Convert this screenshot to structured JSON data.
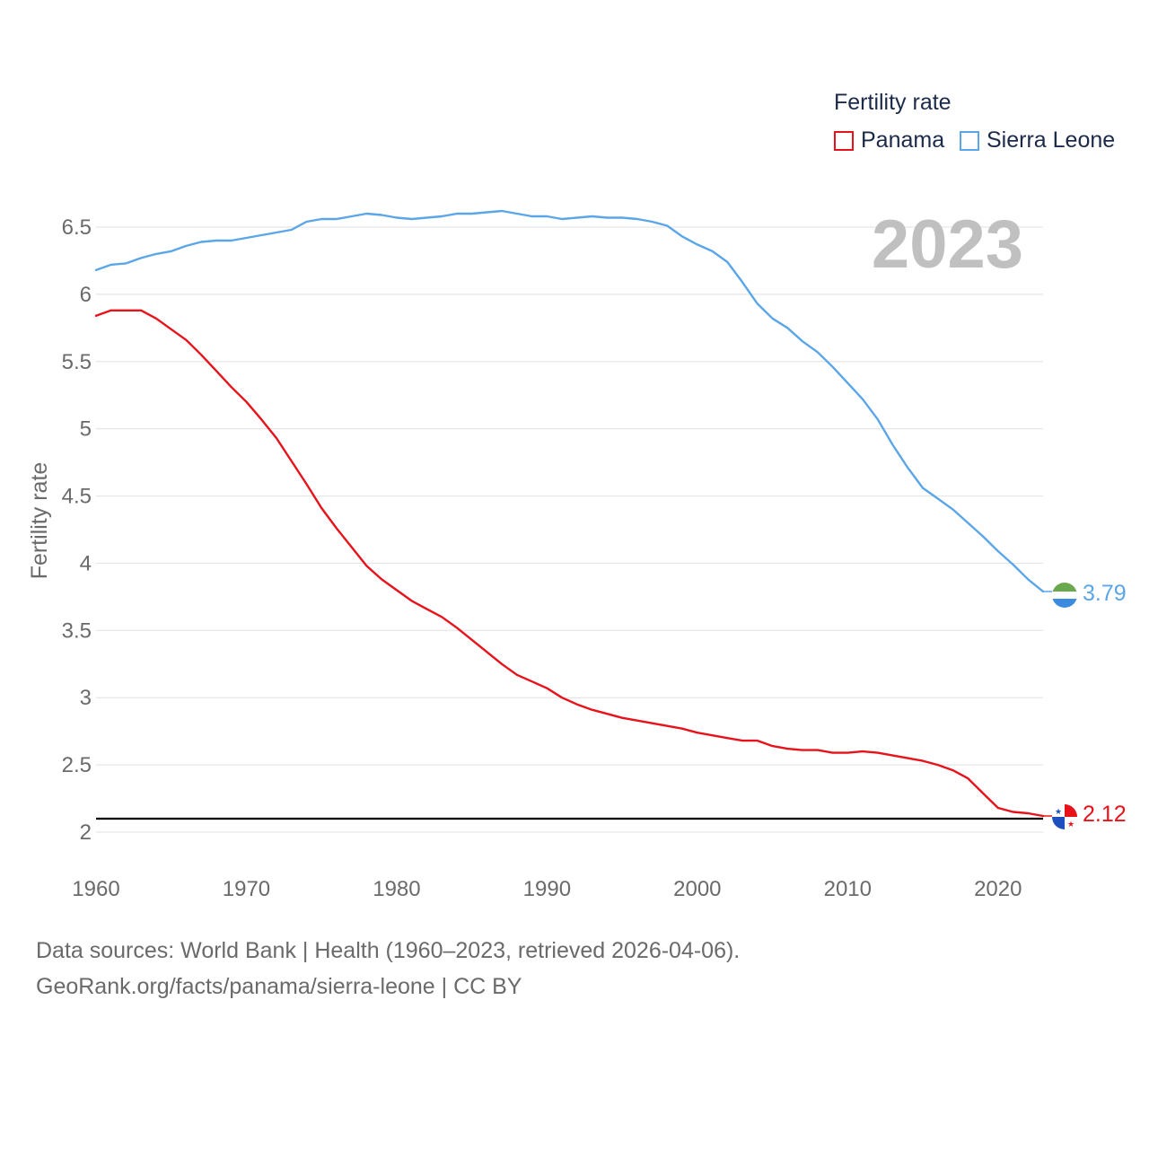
{
  "legend": {
    "title": "Fertility rate",
    "items": [
      {
        "label": "Panama",
        "color": "#e8121b"
      },
      {
        "label": "Sierra Leone",
        "color": "#5ba6e8"
      }
    ]
  },
  "footer": {
    "line1": "Data sources: World Bank | Health (1960–2023, retrieved 2026-04-06).",
    "line2": "GeoRank.org/facts/panama/sierra-leone | CC BY"
  },
  "chart_data": {
    "type": "line",
    "title": "Fertility rate",
    "year_label": "2023",
    "ylabel": "Fertility rate",
    "xlabel": "",
    "xlim": [
      1960,
      2023
    ],
    "ylim": [
      2,
      6.62
    ],
    "x_ticks": [
      "1960",
      "1970",
      "1980",
      "1990",
      "2000",
      "2010",
      "2020"
    ],
    "y_ticks": [
      "2",
      "2.5",
      "3",
      "3.5",
      "4",
      "4.5",
      "5",
      "5.5",
      "6",
      "6.5"
    ],
    "reference_line": {
      "value": 2.1,
      "color": "#000000"
    },
    "x": [
      1960,
      1961,
      1962,
      1963,
      1964,
      1965,
      1966,
      1967,
      1968,
      1969,
      1970,
      1971,
      1972,
      1973,
      1974,
      1975,
      1976,
      1977,
      1978,
      1979,
      1980,
      1981,
      1982,
      1983,
      1984,
      1985,
      1986,
      1987,
      1988,
      1989,
      1990,
      1991,
      1992,
      1993,
      1994,
      1995,
      1996,
      1997,
      1998,
      1999,
      2000,
      2001,
      2002,
      2003,
      2004,
      2005,
      2006,
      2007,
      2008,
      2009,
      2010,
      2011,
      2012,
      2013,
      2014,
      2015,
      2016,
      2017,
      2018,
      2019,
      2020,
      2021,
      2022,
      2023
    ],
    "series": [
      {
        "name": "Panama",
        "color": "#e8121b",
        "end_label": "2.12",
        "values": [
          5.84,
          5.88,
          5.88,
          5.88,
          5.82,
          5.74,
          5.66,
          5.55,
          5.43,
          5.31,
          5.2,
          5.07,
          4.93,
          4.76,
          4.59,
          4.41,
          4.26,
          4.12,
          3.98,
          3.88,
          3.8,
          3.72,
          3.66,
          3.6,
          3.52,
          3.43,
          3.34,
          3.25,
          3.17,
          3.12,
          3.07,
          3.0,
          2.95,
          2.91,
          2.88,
          2.85,
          2.83,
          2.81,
          2.79,
          2.77,
          2.74,
          2.72,
          2.7,
          2.68,
          2.68,
          2.64,
          2.62,
          2.61,
          2.61,
          2.59,
          2.59,
          2.6,
          2.59,
          2.57,
          2.55,
          2.53,
          2.5,
          2.46,
          2.4,
          2.29,
          2.18,
          2.15,
          2.14,
          2.12
        ]
      },
      {
        "name": "Sierra Leone",
        "color": "#5ba6e8",
        "end_label": "3.79",
        "values": [
          6.18,
          6.22,
          6.23,
          6.27,
          6.3,
          6.32,
          6.36,
          6.39,
          6.4,
          6.4,
          6.42,
          6.44,
          6.46,
          6.48,
          6.54,
          6.56,
          6.56,
          6.58,
          6.6,
          6.59,
          6.57,
          6.56,
          6.57,
          6.58,
          6.6,
          6.6,
          6.61,
          6.62,
          6.6,
          6.58,
          6.58,
          6.56,
          6.57,
          6.58,
          6.57,
          6.57,
          6.56,
          6.54,
          6.51,
          6.43,
          6.37,
          6.32,
          6.24,
          6.09,
          5.93,
          5.82,
          5.75,
          5.65,
          5.57,
          5.46,
          5.34,
          5.22,
          5.07,
          4.88,
          4.71,
          4.56,
          4.48,
          4.4,
          4.3,
          4.2,
          4.09,
          3.99,
          3.88,
          3.79
        ]
      }
    ]
  }
}
